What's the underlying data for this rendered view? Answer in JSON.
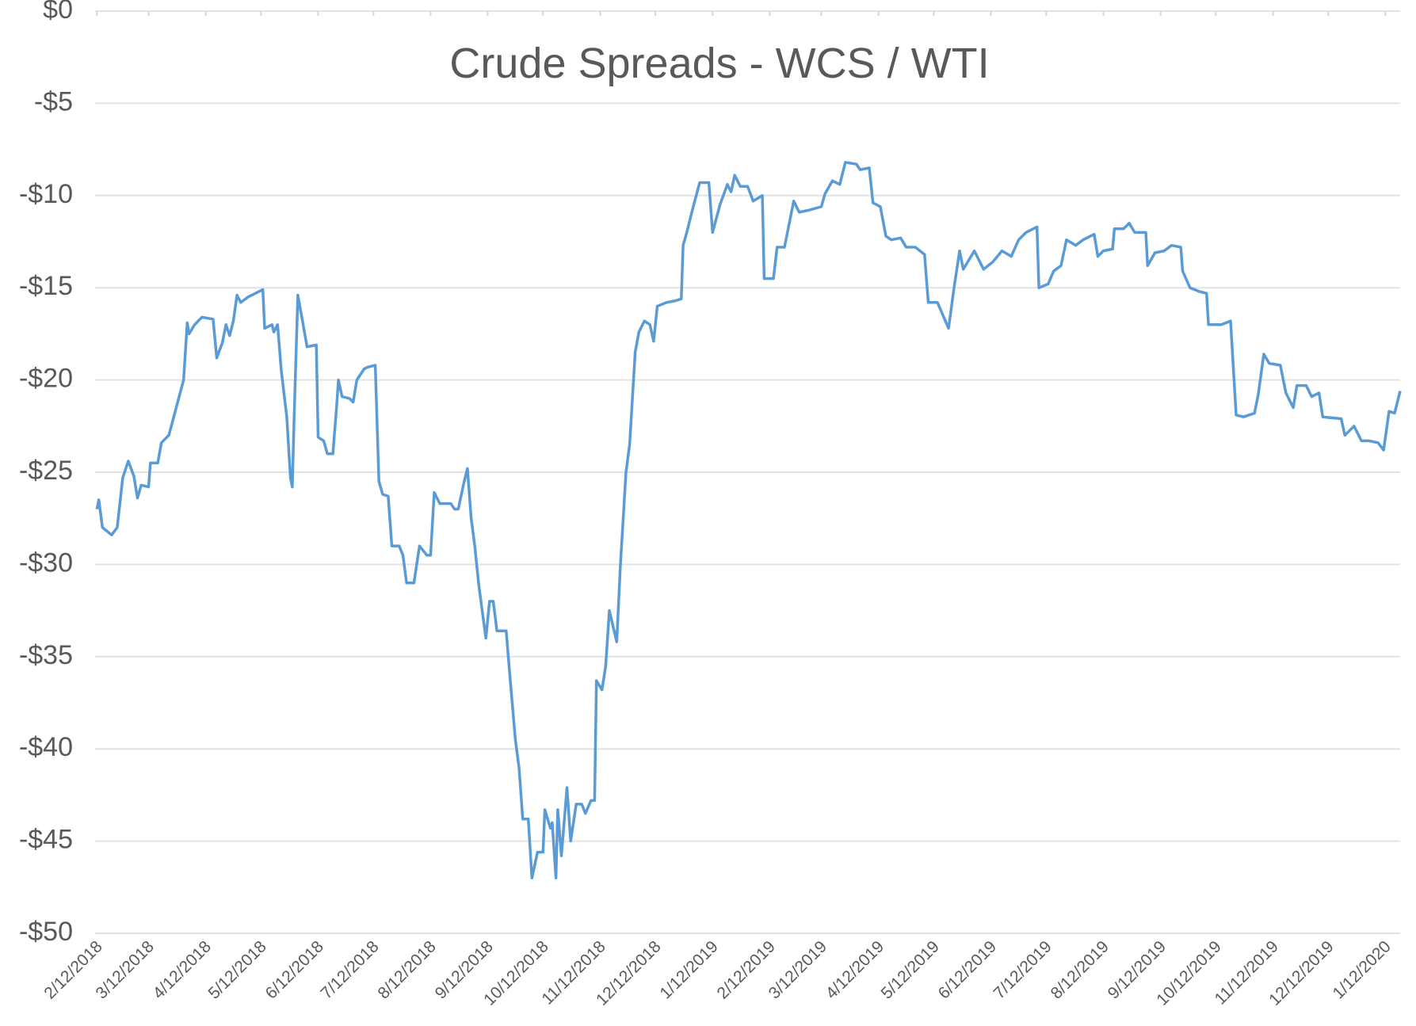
{
  "chart_data": {
    "type": "line",
    "title": "Crude Spreads - WCS / WTI",
    "x": [
      "2/12/2018",
      "2/13/2018",
      "2/15/2018",
      "2/20/2018",
      "2/23/2018",
      "2/26/2018",
      "3/1/2018",
      "3/4/2018",
      "3/6/2018",
      "3/8/2018",
      "3/12/2018",
      "3/13/2018",
      "3/17/2018",
      "3/19/2018",
      "3/23/2018",
      "3/27/2018",
      "3/31/2018",
      "4/2/2018",
      "4/3/2018",
      "4/6/2018",
      "4/10/2018",
      "4/16/2018",
      "4/18/2018",
      "4/21/2018",
      "4/23/2018",
      "4/25/2018",
      "4/27/2018",
      "4/29/2018",
      "5/1/2018",
      "5/5/2018",
      "5/9/2018",
      "5/13/2018",
      "5/14/2018",
      "5/18/2018",
      "5/19/2018",
      "5/21/2018",
      "5/23/2018",
      "5/26/2018",
      "5/28/2018",
      "5/29/2018",
      "5/30/2018",
      "6/1/2018",
      "6/3/2018",
      "6/6/2018",
      "6/11/2018",
      "6/12/2018",
      "6/15/2018",
      "6/17/2018",
      "6/20/2018",
      "6/22/2018",
      "6/23/2018",
      "6/25/2018",
      "6/29/2018",
      "7/1/2018",
      "7/3/2018",
      "7/7/2018",
      "7/9/2018",
      "7/13/2018",
      "7/15/2018",
      "7/17/2018",
      "7/20/2018",
      "7/22/2018",
      "7/26/2018",
      "7/28/2018",
      "7/30/2018",
      "8/3/2018",
      "8/6/2018",
      "8/10/2018",
      "8/12/2018",
      "8/14/2018",
      "8/17/2018",
      "8/23/2018",
      "8/25/2018",
      "8/27/2018",
      "8/30/2018",
      "9/1/2018",
      "9/3/2018",
      "9/5/2018",
      "9/7/2018",
      "9/9/2018",
      "9/11/2018",
      "9/13/2018",
      "9/15/2018",
      "9/17/2018",
      "9/22/2018",
      "9/24/2018",
      "9/27/2018",
      "9/29/2018",
      "10/1/2018",
      "10/4/2018",
      "10/6/2018",
      "10/9/2018",
      "10/12/2018",
      "10/13/2018",
      "10/16/2018",
      "10/17/2018",
      "10/19/2018",
      "10/20/2018",
      "10/22/2018",
      "10/25/2018",
      "10/27/2018",
      "10/30/2018",
      "11/2/2018",
      "11/4/2018",
      "11/7/2018",
      "11/9/2018",
      "11/10/2018",
      "11/13/2018",
      "11/15/2018",
      "11/17/2018",
      "11/21/2018",
      "11/23/2018",
      "11/26/2018",
      "11/28/2018",
      "12/1/2018",
      "12/3/2018",
      "12/6/2018",
      "12/9/2018",
      "12/11/2018",
      "12/13/2018",
      "12/18/2018",
      "12/23/2018",
      "12/26/2018",
      "12/27/2018",
      "12/29/2018",
      "1/1/2019",
      "1/5/2019",
      "1/10/2019",
      "1/12/2019",
      "1/16/2019",
      "1/20/2019",
      "1/22/2019",
      "1/24/2019",
      "1/27/2019",
      "1/31/2019",
      "2/3/2019",
      "2/8/2019",
      "2/9/2019",
      "2/14/2019",
      "2/16/2019",
      "2/20/2019",
      "2/22/2019",
      "2/25/2019",
      "2/28/2019",
      "3/5/2019",
      "3/12/2019",
      "3/14/2019",
      "3/18/2019",
      "3/22/2019",
      "3/25/2019",
      "3/31/2019",
      "4/2/2019",
      "4/7/2019",
      "4/9/2019",
      "4/13/2019",
      "4/16/2019",
      "4/19/2019",
      "4/24/2019",
      "4/27/2019",
      "5/2/2019",
      "5/7/2019",
      "5/9/2019",
      "5/14/2019",
      "5/20/2019",
      "5/23/2019",
      "5/26/2019",
      "5/28/2019",
      "6/3/2019",
      "6/8/2019",
      "6/13/2019",
      "6/18/2019",
      "6/23/2019",
      "6/27/2019",
      "7/1/2019",
      "7/7/2019",
      "7/8/2019",
      "7/13/2019",
      "7/16/2019",
      "7/20/2019",
      "7/23/2019",
      "7/28/2019",
      "8/1/2019",
      "8/7/2019",
      "8/9/2019",
      "8/12/2019",
      "8/17/2019",
      "8/18/2019",
      "8/23/2019",
      "8/26/2019",
      "8/29/2019",
      "9/4/2019",
      "9/5/2019",
      "9/9/2019",
      "9/14/2019",
      "9/18/2019",
      "9/23/2019",
      "9/24/2019",
      "9/28/2019",
      "10/3/2019",
      "10/7/2019",
      "10/8/2019",
      "10/15/2019",
      "10/20/2019",
      "10/23/2019",
      "10/27/2019",
      "11/2/2019",
      "11/4/2019",
      "11/7/2019",
      "11/10/2019",
      "11/16/2019",
      "11/19/2019",
      "11/23/2019",
      "11/25/2019",
      "11/30/2019",
      "12/3/2019",
      "12/7/2019",
      "12/9/2019",
      "12/19/2019",
      "12/21/2019",
      "12/26/2019",
      "12/30/2019",
      "1/3/2020",
      "1/8/2020",
      "1/11/2020",
      "1/14/2020",
      "1/17/2020",
      "1/20/2020"
    ],
    "series": [
      {
        "color": "#5b9bd5",
        "values": [
          -27.0,
          -26.5,
          -28.0,
          -28.4,
          -28.0,
          -25.3,
          -24.4,
          -25.2,
          -26.4,
          -25.7,
          -25.8,
          -24.5,
          -24.5,
          -23.4,
          -23.0,
          -21.5,
          -20.0,
          -16.9,
          -17.5,
          -17.0,
          -16.6,
          -16.7,
          -18.8,
          -18.0,
          -17.0,
          -17.6,
          -16.8,
          -15.4,
          -15.8,
          -15.5,
          -15.3,
          -15.1,
          -17.2,
          -17.0,
          -17.4,
          -17.0,
          -19.5,
          -22.0,
          -25.3,
          -25.8,
          -22.0,
          -15.4,
          -16.5,
          -18.2,
          -18.1,
          -23.1,
          -23.3,
          -24.0,
          -24.0,
          -21.5,
          -20.0,
          -20.9,
          -21.0,
          -21.2,
          -20.0,
          -19.4,
          -19.3,
          -19.2,
          -25.5,
          -26.2,
          -26.3,
          -29.0,
          -29.0,
          -29.5,
          -31.0,
          -31.0,
          -29.0,
          -29.5,
          -29.5,
          -26.1,
          -26.7,
          -26.7,
          -27.0,
          -27.0,
          -25.6,
          -24.8,
          -27.5,
          -29.0,
          -31.0,
          -32.5,
          -34.0,
          -32.0,
          -32.0,
          -33.6,
          -33.6,
          -36.0,
          -39.5,
          -41.0,
          -43.8,
          -43.8,
          -47.0,
          -45.6,
          -45.6,
          -43.3,
          -44.3,
          -44.0,
          -47.0,
          -43.3,
          -45.8,
          -42.1,
          -45.0,
          -43.0,
          -43.0,
          -43.5,
          -42.8,
          -42.8,
          -36.3,
          -36.8,
          -35.5,
          -32.5,
          -34.2,
          -30.0,
          -25.0,
          -23.5,
          -18.5,
          -17.4,
          -16.8,
          -17.0,
          -17.9,
          -16.0,
          -15.8,
          -15.7,
          -15.6,
          -12.7,
          -12.0,
          -10.8,
          -9.3,
          -9.3,
          -12.0,
          -10.5,
          -9.4,
          -9.8,
          -8.9,
          -9.5,
          -9.5,
          -10.3,
          -10.0,
          -14.5,
          -14.5,
          -12.8,
          -12.8,
          -11.8,
          -10.3,
          -10.9,
          -10.8,
          -10.6,
          -9.9,
          -9.2,
          -9.4,
          -8.2,
          -8.3,
          -8.6,
          -8.5,
          -10.4,
          -10.6,
          -12.2,
          -12.4,
          -12.3,
          -12.8,
          -12.8,
          -13.2,
          -15.8,
          -15.8,
          -17.2,
          -15.0,
          -13.0,
          -14.0,
          -13.0,
          -14.0,
          -13.6,
          -13.0,
          -13.3,
          -12.4,
          -12.0,
          -11.7,
          -15.0,
          -14.8,
          -14.1,
          -13.8,
          -12.4,
          -12.7,
          -12.4,
          -12.1,
          -13.3,
          -13.0,
          -12.9,
          -11.8,
          -11.8,
          -11.5,
          -12.0,
          -12.0,
          -13.8,
          -13.1,
          -13.0,
          -12.7,
          -12.8,
          -14.1,
          -15.0,
          -15.2,
          -15.3,
          -17.0,
          -17.0,
          -16.8,
          -21.9,
          -22.0,
          -21.8,
          -20.8,
          -18.6,
          -19.1,
          -19.2,
          -20.7,
          -21.5,
          -20.3,
          -20.3,
          -20.9,
          -20.7,
          -22.0,
          -22.1,
          -23.0,
          -22.5,
          -23.3,
          -23.3,
          -23.4,
          -23.8,
          -21.7,
          -21.8,
          -20.6
        ]
      }
    ],
    "xlim": [
      "2/11/2018",
      "1/20/2020"
    ],
    "xticks": [
      "2/12/2018",
      "3/12/2018",
      "4/12/2018",
      "5/12/2018",
      "6/12/2018",
      "7/12/2018",
      "8/12/2018",
      "9/12/2018",
      "10/12/2018",
      "11/12/2018",
      "12/12/2018",
      "1/12/2019",
      "2/12/2019",
      "3/12/2019",
      "4/12/2019",
      "5/12/2019",
      "6/12/2019",
      "7/12/2019",
      "8/12/2019",
      "9/12/2019",
      "10/12/2019",
      "11/12/2019",
      "12/12/2019",
      "1/12/2020"
    ],
    "ylim": [
      -50,
      0
    ],
    "yticks": [
      {
        "value": 0,
        "label": "$0"
      },
      {
        "value": -5,
        "label": "-$5"
      },
      {
        "value": -10,
        "label": "-$10"
      },
      {
        "value": -15,
        "label": "-$15"
      },
      {
        "value": -20,
        "label": "-$20"
      },
      {
        "value": -25,
        "label": "-$25"
      },
      {
        "value": -30,
        "label": "-$30"
      },
      {
        "value": -35,
        "label": "-$35"
      },
      {
        "value": -40,
        "label": "-$40"
      },
      {
        "value": -45,
        "label": "-$45"
      },
      {
        "value": -50,
        "label": "-$50"
      }
    ],
    "grid": true
  }
}
